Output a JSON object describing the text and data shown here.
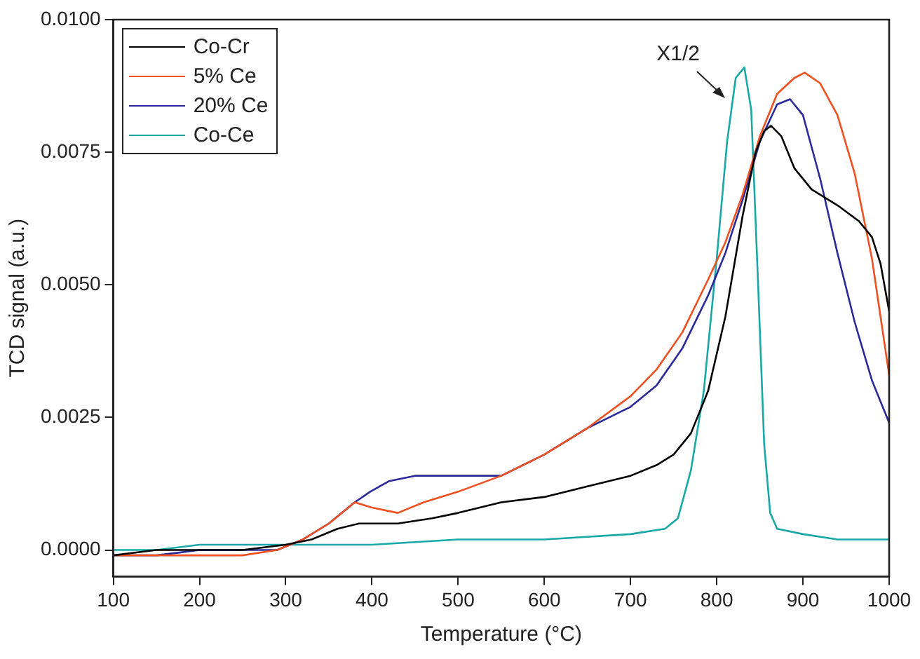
{
  "chart_data": {
    "type": "line",
    "xlabel": "Temperature (°C)",
    "ylabel": "TCD signal (a.u.)",
    "xlim": [
      100,
      1000
    ],
    "xticks": [
      100,
      200,
      300,
      400,
      500,
      600,
      700,
      800,
      900,
      1000
    ],
    "ylim": [
      -0.0005,
      0.01
    ],
    "yticks": [
      {
        "value": 0,
        "label": "0.0000"
      },
      {
        "value": 0.0025,
        "label": "0.0025"
      },
      {
        "value": 0.005,
        "label": "0.0050"
      },
      {
        "value": 0.0075,
        "label": "0.0075"
      },
      {
        "value": 0.01,
        "label": "0.0100"
      }
    ],
    "grid": false,
    "legend": "top left",
    "marker": "none",
    "line_style": "solid",
    "annotations": [
      "X1/2"
    ],
    "series": [
      {
        "name": "Co-Cr",
        "color": "#000000",
        "x": [
          100,
          150,
          200,
          250,
          300,
          330,
          360,
          385,
          400,
          430,
          470,
          500,
          550,
          600,
          650,
          700,
          730,
          750,
          770,
          790,
          810,
          830,
          845,
          855,
          863,
          875,
          890,
          910,
          940,
          965,
          980,
          990,
          1000
        ],
        "values": [
          -0.0001,
          0,
          0,
          0,
          0.0001,
          0.0002,
          0.0004,
          0.0005,
          0.0005,
          0.0005,
          0.0006,
          0.0007,
          0.0009,
          0.001,
          0.0012,
          0.0014,
          0.0016,
          0.0018,
          0.0022,
          0.003,
          0.0044,
          0.0063,
          0.0075,
          0.0079,
          0.008,
          0.0078,
          0.0072,
          0.0068,
          0.0065,
          0.0062,
          0.0059,
          0.0054,
          0.0045
        ]
      },
      {
        "name": "5% Ce",
        "color": "#f05020",
        "x": [
          100,
          150,
          200,
          250,
          290,
          320,
          350,
          380,
          400,
          430,
          460,
          500,
          550,
          600,
          650,
          700,
          730,
          760,
          790,
          810,
          830,
          850,
          870,
          890,
          902,
          920,
          940,
          960,
          980,
          1000
        ],
        "values": [
          -0.0001,
          -0.0001,
          -0.0001,
          -0.0001,
          0,
          0.0002,
          0.0005,
          0.0009,
          0.0008,
          0.0007,
          0.0009,
          0.0011,
          0.0014,
          0.0018,
          0.0023,
          0.0029,
          0.0034,
          0.0041,
          0.0051,
          0.0058,
          0.0067,
          0.0078,
          0.0086,
          0.0089,
          0.009,
          0.0088,
          0.0082,
          0.0071,
          0.0055,
          0.0033
        ]
      },
      {
        "name": "20% Ce",
        "color": "#2a2a9a",
        "x": [
          100,
          150,
          200,
          250,
          290,
          320,
          350,
          380,
          398,
          420,
          450,
          500,
          550,
          600,
          650,
          700,
          730,
          760,
          790,
          810,
          830,
          850,
          870,
          885,
          900,
          920,
          940,
          960,
          980,
          1000
        ],
        "values": [
          -0.0001,
          -0.0001,
          0,
          0,
          0,
          0.0002,
          0.0005,
          0.0009,
          0.0011,
          0.0013,
          0.0014,
          0.0014,
          0.0014,
          0.0018,
          0.0023,
          0.0027,
          0.0031,
          0.0038,
          0.0048,
          0.0056,
          0.0066,
          0.0077,
          0.0084,
          0.0085,
          0.0082,
          0.007,
          0.0056,
          0.0043,
          0.0032,
          0.0024
        ]
      },
      {
        "name": "Co-Ce",
        "color": "#18a8a8",
        "x": [
          100,
          150,
          200,
          250,
          300,
          350,
          400,
          500,
          600,
          700,
          740,
          755,
          770,
          785,
          800,
          812,
          822,
          832,
          840,
          848,
          855,
          862,
          870,
          900,
          940,
          970,
          1000
        ],
        "values": [
          0,
          0,
          0.0001,
          0.0001,
          0.0001,
          0.0001,
          0.0001,
          0.0002,
          0.0002,
          0.0003,
          0.0004,
          0.0006,
          0.0015,
          0.003,
          0.0055,
          0.0077,
          0.0089,
          0.0091,
          0.0083,
          0.005,
          0.002,
          0.0007,
          0.0004,
          0.0003,
          0.0002,
          0.0002,
          0.0002
        ]
      }
    ]
  }
}
